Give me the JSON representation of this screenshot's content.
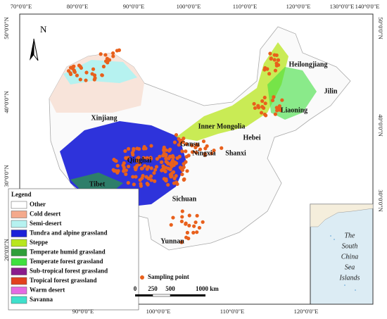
{
  "north": "N",
  "top_lon_labels": [
    "70°0'0\"E",
    "80°0'0\"E",
    "90°0'0\"E",
    "100°0'0\"E",
    "110°0'0\"E",
    "120°0'0\"E",
    "130°0'0\"E",
    "140°0'0\"E"
  ],
  "bottom_lon_labels": [
    "90°0'0\"E",
    "100°0'0\"E",
    "110°0'0\"E",
    "120°0'0\"E"
  ],
  "left_lat_labels": [
    "50°0'0\"N",
    "40°0'0\"N",
    "30°0'0\"N",
    "20°0'0\"N"
  ],
  "right_lat_labels": [
    "50°0'0\"N",
    "40°0'0\"N",
    "30°0'0\"N"
  ],
  "places": [
    "Heilongjiang",
    "Jilin",
    "Liaoning",
    "Inner Mongolia",
    "Hebei",
    "Gansu",
    "Ningxia",
    "Shanxi",
    "Xinjiang",
    "Qinghai",
    "Tibet",
    "Sichuan",
    "Yunnan"
  ],
  "legend": {
    "title": "Legend",
    "items": [
      {
        "name": "Other",
        "color": "#ffffff"
      },
      {
        "name": "Cold desert",
        "color": "#f4a98c"
      },
      {
        "name": "Semi-desert",
        "color": "#b6f2f0"
      },
      {
        "name": "Tundra and alpine grassland",
        "color": "#1c22d8"
      },
      {
        "name": "Steppe",
        "color": "#b8e61e"
      },
      {
        "name": "Temperate humid grassland",
        "color": "#2f9e3a"
      },
      {
        "name": "Temperate forest grassland",
        "color": "#3fe03f"
      },
      {
        "name": "Sub-tropical forest grassland",
        "color": "#8a1c8c"
      },
      {
        "name": "Tropical forest grassland",
        "color": "#e2401e"
      },
      {
        "name": "Warm desert",
        "color": "#e46ae2"
      },
      {
        "name": "Savanna",
        "color": "#3fe0cc"
      }
    ]
  },
  "sampling_point": "Sampling point",
  "scale": [
    "0",
    "250",
    "500",
    "1000 km"
  ],
  "inset": [
    "The",
    "South",
    "China",
    "Sea",
    "Islands"
  ]
}
